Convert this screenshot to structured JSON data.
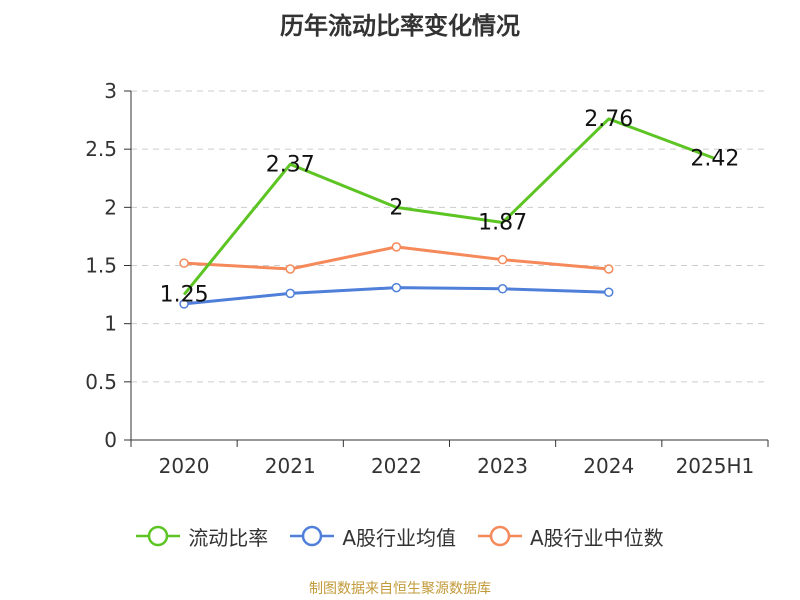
{
  "chart_data": {
    "type": "line",
    "title": "历年流动比率变化情况",
    "xlabel": "",
    "ylabel": "",
    "categories": [
      "2020",
      "2021",
      "2022",
      "2023",
      "2024",
      "2025H1"
    ],
    "ylim": [
      0,
      3
    ],
    "yticks": [
      "0",
      "0.5",
      "1",
      "1.5",
      "2",
      "2.5",
      "3"
    ],
    "grid": true,
    "legend_position": "bottom",
    "series": [
      {
        "name": "流动比率",
        "color": "#5cc423",
        "values": [
          1.25,
          2.37,
          2,
          1.87,
          2.76,
          2.42
        ],
        "labels": [
          "1.25",
          "2.37",
          "2",
          "1.87",
          "2.76",
          "2.42"
        ],
        "markers": false
      },
      {
        "name": "A股行业均值",
        "color": "#4f7fd9",
        "values": [
          1.17,
          1.26,
          1.31,
          1.3,
          1.27,
          null
        ],
        "markers": true
      },
      {
        "name": "A股行业中位数",
        "color": "#f5895a",
        "values": [
          1.52,
          1.47,
          1.66,
          1.55,
          1.47,
          null
        ],
        "markers": true
      }
    ],
    "source": "制图数据来自恒生聚源数据库"
  }
}
